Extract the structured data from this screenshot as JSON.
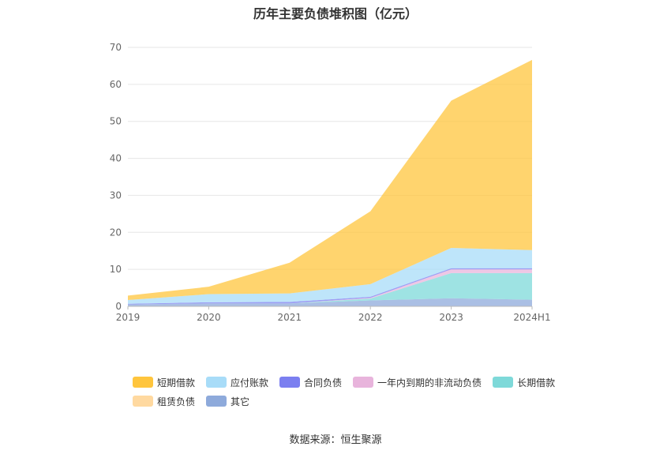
{
  "title": "历年主要负债堆积图（亿元）",
  "source": "数据来源：恒生聚源",
  "chart_data": {
    "type": "area",
    "stacked": true,
    "title": "历年主要负债堆积图（亿元）",
    "categories": [
      "2019",
      "2020",
      "2021",
      "2022",
      "2023",
      "2024H1"
    ],
    "ylim": [
      0,
      70
    ],
    "yticks": [
      0,
      10,
      20,
      30,
      40,
      50,
      60,
      70
    ],
    "grid": true,
    "legend_position": "bottom",
    "series": [
      {
        "name": "其它",
        "color": "#8eaadb",
        "values": [
          0.5,
          0.8,
          0.8,
          1.6,
          2.2,
          1.8
        ]
      },
      {
        "name": "租赁负债",
        "color": "#ffd9a0",
        "values": [
          0.0,
          0.0,
          0.0,
          0.0,
          0.0,
          0.0
        ]
      },
      {
        "name": "长期借款",
        "color": "#7ed9d9",
        "values": [
          0.0,
          0.0,
          0.0,
          0.5,
          6.8,
          7.2
        ]
      },
      {
        "name": "一年内到期的非流动负债",
        "color": "#e8b4dc",
        "values": [
          0.0,
          0.0,
          0.0,
          0.2,
          1.0,
          1.0
        ]
      },
      {
        "name": "合同负债",
        "color": "#7b7ff0",
        "values": [
          0.2,
          0.3,
          0.4,
          0.3,
          0.3,
          0.3
        ]
      },
      {
        "name": "应付账款",
        "color": "#a8dcf8",
        "values": [
          1.0,
          2.2,
          2.3,
          3.4,
          5.5,
          4.9
        ]
      },
      {
        "name": "短期借款",
        "color": "#ffc53d",
        "values": [
          1.2,
          2.0,
          8.3,
          19.7,
          39.8,
          51.4
        ]
      }
    ]
  },
  "legend": {
    "row1": [
      {
        "label": "短期借款",
        "color": "#ffc53d"
      },
      {
        "label": "应付账款",
        "color": "#a8dcf8"
      },
      {
        "label": "合同负债",
        "color": "#7b7ff0"
      },
      {
        "label": "一年内到期的非流动负债",
        "color": "#e8b4dc"
      },
      {
        "label": "长期借款",
        "color": "#7ed9d9"
      }
    ],
    "row2": [
      {
        "label": "租赁负债",
        "color": "#ffd9a0"
      },
      {
        "label": "其它",
        "color": "#8eaadb"
      }
    ]
  }
}
